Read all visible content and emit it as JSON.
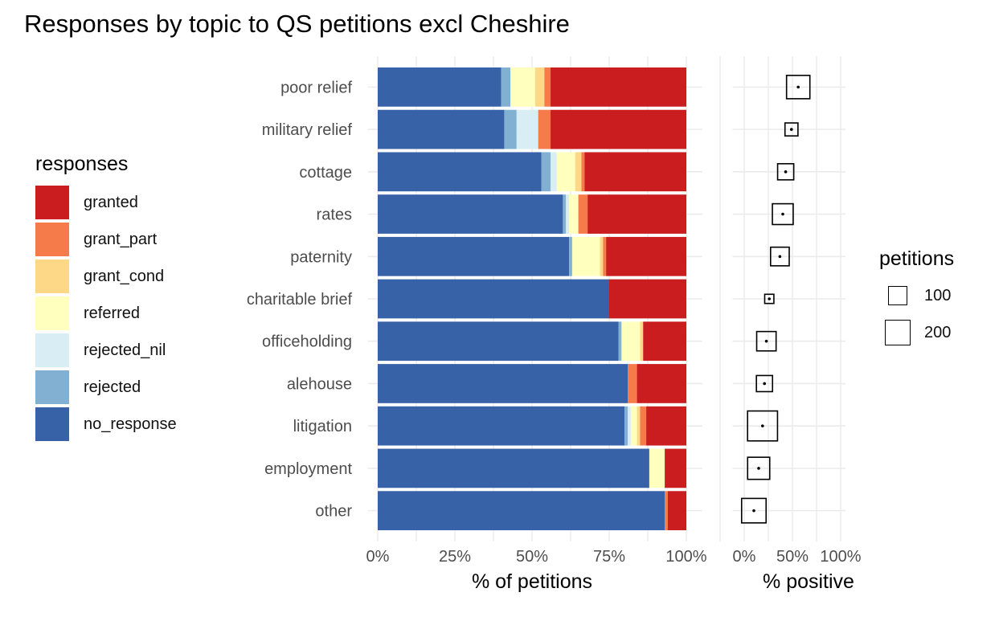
{
  "colors": {
    "granted": "#ca1d20",
    "grant_part": "#f67b4b",
    "grant_cond": "#fdd887",
    "referred": "#ffffbe",
    "rejected_nil": "#d8eef4",
    "rejected": "#81b0d3",
    "no_response": "#3762a8",
    "gridline": "#ebebeb"
  },
  "chart_data": [
    {
      "type": "bar",
      "orientation": "horizontal",
      "stacked": true,
      "title": "Responses by topic to QS petitions excl Cheshire",
      "xlabel": "% of petitions",
      "ylabel": "",
      "xlim": [
        0,
        100
      ],
      "x_ticks": [
        "0%",
        "25%",
        "50%",
        "75%",
        "100%"
      ],
      "legend_title": "responses",
      "legend_position": "left",
      "grid": true,
      "categories": [
        "poor relief",
        "military relief",
        "cottage",
        "rates",
        "paternity",
        "charitable brief",
        "officeholding",
        "alehouse",
        "litigation",
        "employment",
        "other"
      ],
      "series": [
        {
          "name": "no_response",
          "values": [
            40,
            41,
            53,
            60,
            62,
            75,
            78,
            81,
            80,
            88,
            93
          ]
        },
        {
          "name": "rejected",
          "values": [
            3,
            4,
            3,
            1,
            1,
            0,
            1,
            0,
            1,
            0,
            0
          ]
        },
        {
          "name": "rejected_nil",
          "values": [
            0,
            7,
            2,
            1,
            0,
            0,
            0,
            0,
            1,
            0,
            0
          ]
        },
        {
          "name": "referred",
          "values": [
            8,
            0,
            6,
            3,
            9,
            0,
            6,
            0,
            2,
            5,
            0
          ]
        },
        {
          "name": "grant_cond",
          "values": [
            3,
            0,
            2,
            0,
            1,
            0,
            1,
            0,
            1,
            0,
            0
          ]
        },
        {
          "name": "grant_part",
          "values": [
            2,
            4,
            1,
            3,
            1,
            0,
            0,
            3,
            2,
            0,
            1
          ]
        },
        {
          "name": "granted",
          "values": [
            44,
            44,
            33,
            32,
            26,
            25,
            14,
            16,
            13,
            7,
            6
          ]
        }
      ]
    },
    {
      "type": "scatter",
      "xlabel": "% positive",
      "xlim": [
        0,
        100
      ],
      "x_ticks": [
        "0%",
        "50%",
        "100%"
      ],
      "grid": true,
      "size_legend_title": "petitions",
      "size_legend": [
        {
          "label": "100",
          "value": 100
        },
        {
          "label": "200",
          "value": 200
        }
      ],
      "categories": [
        "poor relief",
        "military relief",
        "cottage",
        "rates",
        "paternity",
        "charitable brief",
        "officeholding",
        "alehouse",
        "litigation",
        "employment",
        "other"
      ],
      "x": [
        56,
        49,
        43,
        40,
        37,
        26,
        23,
        21,
        19,
        15,
        10
      ],
      "size": [
        170,
        40,
        70,
        130,
        100,
        15,
        110,
        70,
        300,
        150,
        190
      ]
    }
  ]
}
